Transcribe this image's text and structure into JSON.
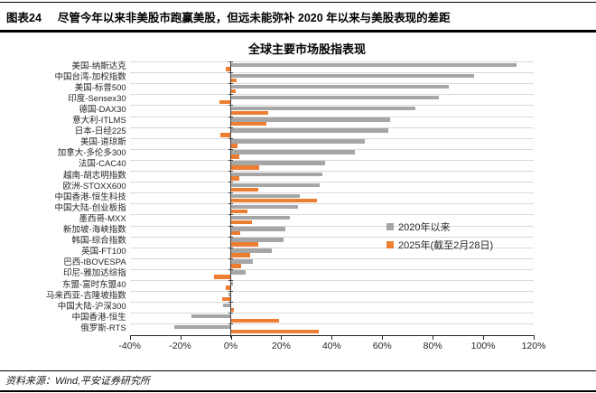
{
  "header": {
    "tag": "图表24",
    "title": "尽管今年以来非美股市跑赢美股，但远未能弥补 2020 年以来与美股表现的差距"
  },
  "footer": {
    "source": "资料来源：Wind,平安证券研究所"
  },
  "chart_data": {
    "type": "bar",
    "orientation": "horizontal",
    "title": "全球主要市场股指表现",
    "categories": [
      "美国-纳斯达克",
      "中国台湾-加权指数",
      "美国-标普500",
      "印度-Sensex30",
      "德国-DAX30",
      "意大利-ITLMS",
      "日本-日经225",
      "美国-道琼斯",
      "加拿大-多伦多300",
      "法国-CAC40",
      "越南-胡志明指数",
      "欧洲-STOXX600",
      "中国香港-恒生科技",
      "中国大陆-创业板指",
      "墨西哥-MXX",
      "新加坡-海峡指数",
      "韩国-综合指数",
      "英国-FT100",
      "巴西-IBOVESPA",
      "印尼-雅加达综指",
      "东盟-富时东盟40",
      "马来西亚-吉隆坡指数",
      "中国大陆-沪深300",
      "中国香港-恒生",
      "俄罗斯-RTS"
    ],
    "series": [
      {
        "name": "2020年以来",
        "color": "#a6a6a6",
        "values": [
          113,
          96,
          86,
          82,
          73,
          63,
          62,
          53,
          49,
          37,
          36,
          35,
          27,
          26.5,
          23,
          21.5,
          20.5,
          16,
          8.5,
          5.5,
          0.5,
          -1,
          -3,
          -15.5,
          -22.5
        ]
      },
      {
        "name": "2025年(截至2月28日)",
        "color": "#ed7d31",
        "values": [
          -2,
          2,
          1.5,
          -4.5,
          14.5,
          14,
          -4,
          2.5,
          3,
          11,
          3,
          10.5,
          34,
          6.5,
          8,
          3.5,
          10.5,
          7.5,
          4,
          -6.5,
          -2,
          -3.5,
          1,
          19,
          34.5
        ]
      }
    ],
    "xlim": [
      -40,
      120
    ],
    "x_ticks": [
      "-40%",
      "-20%",
      "0%",
      "20%",
      "40%",
      "60%",
      "80%",
      "100%",
      "120%"
    ],
    "unit": "%",
    "grid": "category-separators",
    "legend_position": "inside-right"
  }
}
